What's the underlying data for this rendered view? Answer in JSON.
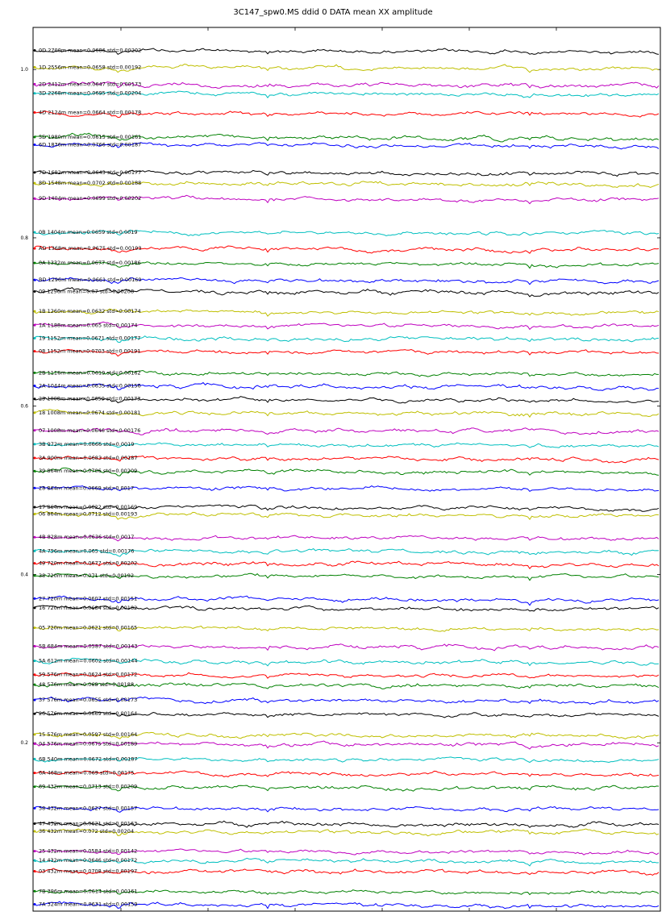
{
  "chart_data": {
    "type": "line",
    "title": "3C147_spw0.MS ddid 0 DATA mean XX amplitude",
    "xlabel": "",
    "ylabel": "",
    "ylim": [
      0.0,
      1.05
    ],
    "yticks": [
      "0.2",
      "0.4",
      "0.6",
      "0.8",
      "1.0"
    ],
    "ytick_values": [
      0.2,
      0.4,
      0.6,
      0.8,
      1.0
    ],
    "grid": false,
    "legend": "none",
    "series": [
      {
        "label": "0D 2700m mean=0.0686 std=0.00202",
        "offset": 1.0227,
        "color": "#000000"
      },
      {
        "label": "1D 2556m mean=0.0658 std=0.00192",
        "offset": 1.0027,
        "color": "#bfbf00"
      },
      {
        "label": "2D 2412m mean=0.0647 std=0.00173",
        "offset": 0.9826,
        "color": "#bf00bf"
      },
      {
        "label": "3D 2268m mean=0.0695 std=0.00204",
        "offset": 0.9717,
        "color": "#00bfbf"
      },
      {
        "label": "4D 2124m mean=0.0664 std=0.00178",
        "offset": 0.9489,
        "color": "#ff0000"
      },
      {
        "label": "5D 1980m mean=0.0615 std=0.00161",
        "offset": 0.9197,
        "color": "#008000"
      },
      {
        "label": "6D 1836m mean=0.0766 std=0.00187",
        "offset": 0.9106,
        "color": "#0000ff"
      },
      {
        "label": "7D 1692m mean=0.0643 std=0.00177",
        "offset": 0.8777,
        "color": "#000000"
      },
      {
        "label": "8D 1548m mean=0.0702 std=0.00188",
        "offset": 0.865,
        "color": "#bfbf00"
      },
      {
        "label": "9D 1404m mean=0.0699 std=0.00202",
        "offset": 0.8467,
        "color": "#bf00bf"
      },
      {
        "label": "0B 1404m mean=0.0659 std=0.0019",
        "offset": 0.8066,
        "color": "#00bfbf"
      },
      {
        "label": "AD 1368m mean=0.0675 std=0.00193",
        "offset": 0.7874,
        "color": "#ff0000"
      },
      {
        "label": "0A 1332m mean=0.0677 std=0.00186",
        "offset": 0.7701,
        "color": "#008000"
      },
      {
        "label": "BD 1296m mean=0.0661 std=0.00169",
        "offset": 0.75,
        "color": "#0000ff"
      },
      {
        "label": "09 1296m mean=0.07 std=0.00208",
        "offset": 0.7363,
        "color": "#000000"
      },
      {
        "label": "1B 1260m mean=0.0632 std=0.00174",
        "offset": 0.7126,
        "color": "#bfbf00"
      },
      {
        "label": "1A 1188m mean=0.065 std=0.00174",
        "offset": 0.6962,
        "color": "#bf00bf"
      },
      {
        "label": "19 1152m mean=0.0671 std=0.00177",
        "offset": 0.6807,
        "color": "#00bfbf"
      },
      {
        "label": "08 1152m mean=0.0703 std=0.00191",
        "offset": 0.6652,
        "color": "#ff0000"
      },
      {
        "label": "2B 1116m mean=0.0619 std=0.00162",
        "offset": 0.6396,
        "color": "#008000"
      },
      {
        "label": "2A 1044m mean=0.0635 std=0.00156",
        "offset": 0.6241,
        "color": "#0000ff"
      },
      {
        "label": "29 1008m mean=0.0659 std=0.00173",
        "offset": 0.6086,
        "color": "#000000"
      },
      {
        "label": "18 1008m mean=0.0674 std=0.00181",
        "offset": 0.5922,
        "color": "#bfbf00"
      },
      {
        "label": "07 1008m mean=0.0646 std=0.00176",
        "offset": 0.5712,
        "color": "#bf00bf"
      },
      {
        "label": "3B 972m mean=0.0666 std=0.0019",
        "offset": 0.5548,
        "color": "#00bfbf"
      },
      {
        "label": "3A 900m mean=0.0683 std=0.00187",
        "offset": 0.5384,
        "color": "#ff0000"
      },
      {
        "label": "39 864m mean=0.0706 std=0.00209",
        "offset": 0.5229,
        "color": "#008000"
      },
      {
        "label": "28 864m mean=0.0669 std=0.0017",
        "offset": 0.5027,
        "color": "#0000ff"
      },
      {
        "label": "17 864m mean=0.0622 std=0.00169",
        "offset": 0.48,
        "color": "#000000"
      },
      {
        "label": "06 864m mean=0.0712 std=0.00193",
        "offset": 0.4717,
        "color": "#bfbf00"
      },
      {
        "label": "4B 828m mean=0.0636 std=0.0017",
        "offset": 0.4443,
        "color": "#bf00bf"
      },
      {
        "label": "4A 756m mean=0.065 std=0.00176",
        "offset": 0.4279,
        "color": "#00bfbf"
      },
      {
        "label": "49 720m mean=0.0677 std=0.00202",
        "offset": 0.4133,
        "color": "#ff0000"
      },
      {
        "label": "38 720m mean=0.071 std=0.00192",
        "offset": 0.3987,
        "color": "#008000"
      },
      {
        "label": "27 720m mean=0.0607 std=0.00151",
        "offset": 0.3713,
        "color": "#0000ff"
      },
      {
        "label": "16 720m mean=0.0684 std=0.00182",
        "offset": 0.3603,
        "color": "#000000"
      },
      {
        "label": "05 720m mean=0.0621 std=0.00165",
        "offset": 0.3366,
        "color": "#bfbf00"
      },
      {
        "label": "5B 684m mean=0.0587 std=0.00143",
        "offset": 0.3148,
        "color": "#bf00bf"
      },
      {
        "label": "5A 612m mean=0.0602 std=0.00144",
        "offset": 0.2974,
        "color": "#00bfbf"
      },
      {
        "label": "59 576m mean=0.0624 std=0.00172",
        "offset": 0.281,
        "color": "#ff0000"
      },
      {
        "label": "48 576m mean=0.068 std=0.00188",
        "offset": 0.2691,
        "color": "#008000"
      },
      {
        "label": "37 576m mean=0.0655 std=0.00173",
        "offset": 0.2509,
        "color": "#0000ff"
      },
      {
        "label": "26 576m mean=0.0669 std=0.00164",
        "offset": 0.2345,
        "color": "#000000"
      },
      {
        "label": "15 576m mean=0.0597 std=0.00164",
        "offset": 0.2099,
        "color": "#bfbf00"
      },
      {
        "label": "04 576m mean=0.0675 std=0.00189",
        "offset": 0.1989,
        "color": "#bf00bf"
      },
      {
        "label": "6B 540m mean=0.0672 std=0.00187",
        "offset": 0.1807,
        "color": "#00bfbf"
      },
      {
        "label": "6A 468m mean=0.069 std=0.00175",
        "offset": 0.1642,
        "color": "#ff0000"
      },
      {
        "label": "69 432m mean=0.0713 std=0.00209",
        "offset": 0.1478,
        "color": "#008000"
      },
      {
        "label": "58 432m mean=0.0627 std=0.00157",
        "offset": 0.1223,
        "color": "#0000ff"
      },
      {
        "label": "47 432m mean=0.0621 std=0.00163",
        "offset": 0.104,
        "color": "#000000"
      },
      {
        "label": "36 432m mean=0.072 std=0.00204",
        "offset": 0.0949,
        "color": "#bfbf00"
      },
      {
        "label": "25 432m mean=0.0584 std=0.00142",
        "offset": 0.0712,
        "color": "#bf00bf"
      },
      {
        "label": "14 432m mean=0.0646 std=0.00172",
        "offset": 0.0602,
        "color": "#00bfbf"
      },
      {
        "label": "03 432m mean=0.0708 std=0.00197",
        "offset": 0.0474,
        "color": "#ff0000"
      },
      {
        "label": "7B 396m mean=0.0614 std=0.00161",
        "offset": 0.0237,
        "color": "#008000"
      },
      {
        "label": "7A 324m mean=0.0631 std=0.00159",
        "offset": 0.0082,
        "color": "#0000ff"
      }
    ]
  }
}
